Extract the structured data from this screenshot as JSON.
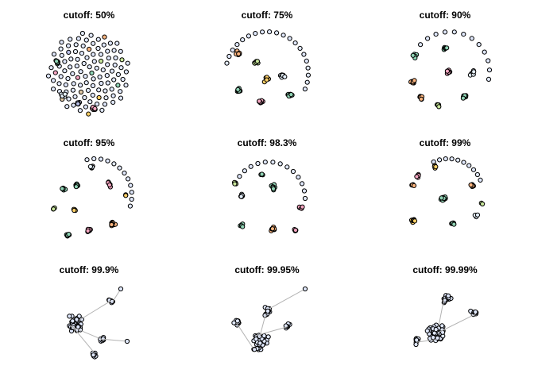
{
  "figure": {
    "panels": [
      {
        "title": "cutoff: 50%"
      },
      {
        "title": "cutoff: 75%"
      },
      {
        "title": "cutoff: 90%"
      },
      {
        "title": "cutoff: 95%"
      },
      {
        "title": "cutoff: 98.3%"
      },
      {
        "title": "cutoff: 99%"
      },
      {
        "title": "cutoff: 99.9%"
      },
      {
        "title": "cutoff: 99.95%"
      },
      {
        "title": "cutoff: 99.99%"
      }
    ]
  },
  "colors": {
    "palette": [
      "#e5f0fb",
      "#8fd3b4",
      "#fbb47e",
      "#f4a5c0",
      "#ffd066",
      "#c7e59a",
      "#b7bee6",
      "#e0c9a6",
      "#d7d7d7"
    ],
    "single_component": "#dfe7fb",
    "edge": "#b3b3b3",
    "node_stroke": "#000000"
  }
}
